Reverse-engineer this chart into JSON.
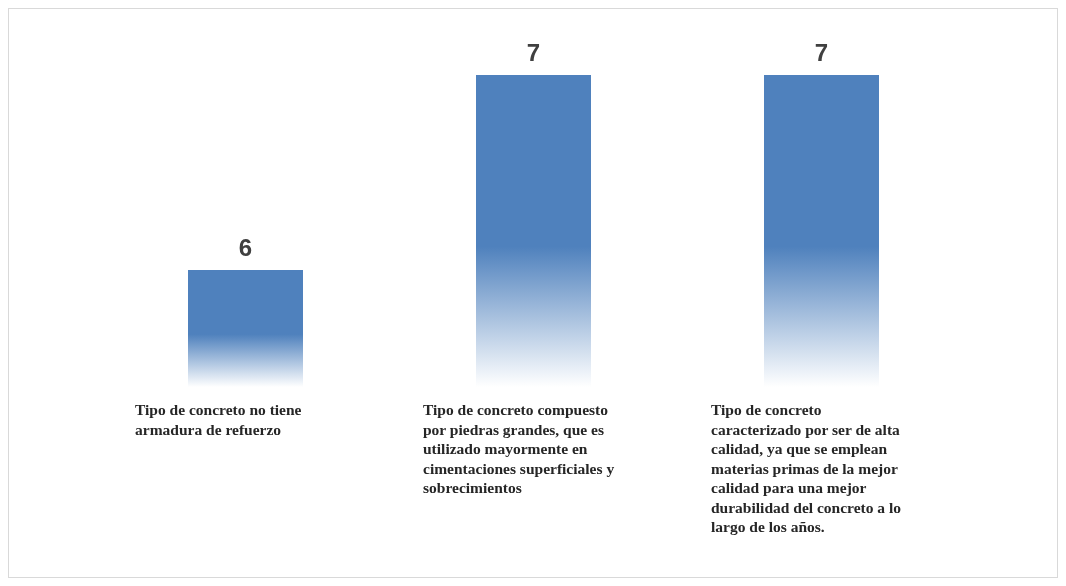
{
  "chart_data": {
    "type": "bar",
    "categories": [
      "Tipo de concreto no tiene armadura de refuerzo",
      "Tipo de concreto compuesto por piedras grandes, que es utilizado mayormente en cimentaciones superficiales y sobrecimientos",
      "Tipo de concreto caracterizado por ser de alta calidad, ya que se emplean materias primas de la mejor calidad para una mejor durabilidad del concreto a lo largo de los años."
    ],
    "values": [
      6,
      7,
      7
    ],
    "color": "#4f81bd",
    "ylim": [
      5.4,
      7.0
    ],
    "data_labels": true
  }
}
